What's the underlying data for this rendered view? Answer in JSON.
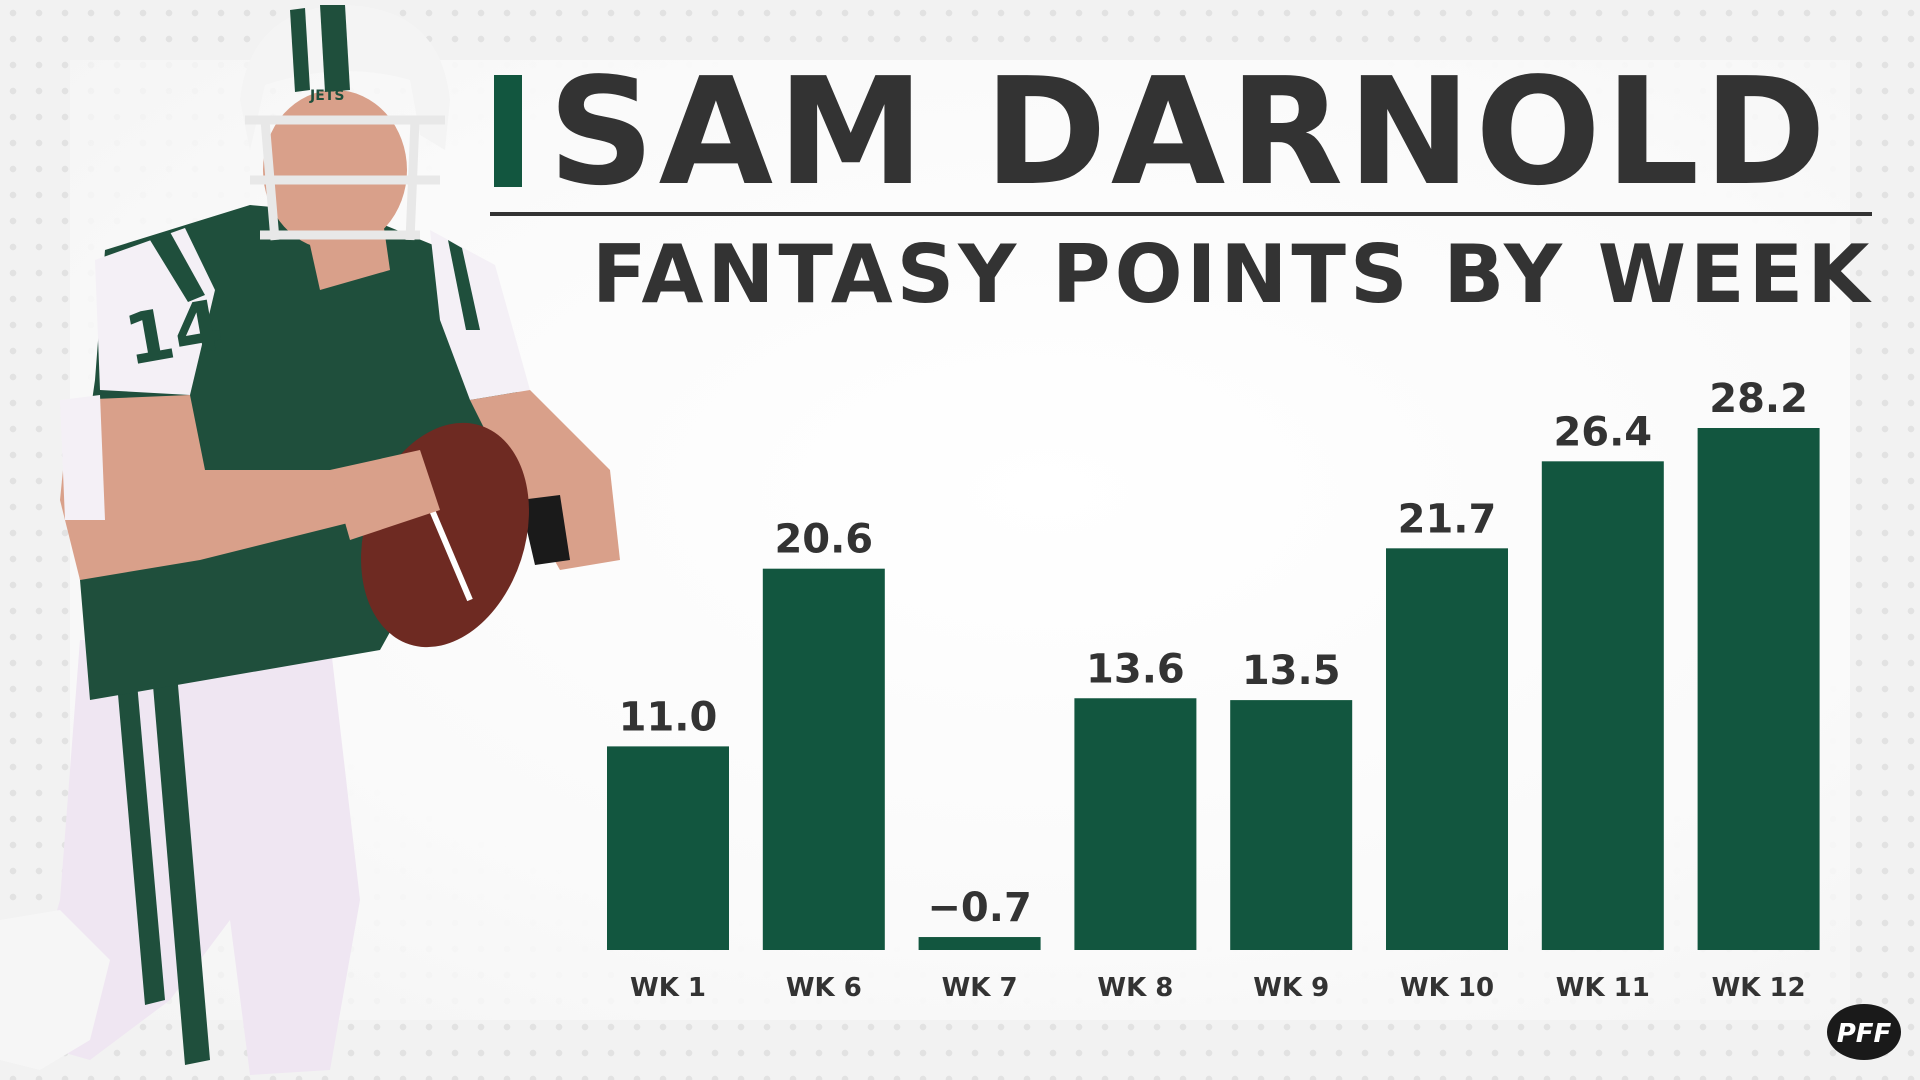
{
  "header": {
    "title": "SAM DARNOLD",
    "subtitle": "FANTASY POINTS BY WEEK"
  },
  "colors": {
    "bar": "#12563f",
    "text": "#333333",
    "jersey_green": "#1f4f3c",
    "jersey_white": "#f4f0f6"
  },
  "player_image": {
    "jersey_number": "14",
    "helmet_text": "JETS"
  },
  "logo": {
    "text": "PFF",
    "icon": "pff-logo-icon"
  },
  "chart_data": {
    "type": "bar",
    "title": "FANTASY POINTS BY WEEK",
    "xlabel": "",
    "ylabel": "",
    "categories": [
      "WK 1",
      "WK 6",
      "WK 7",
      "WK 8",
      "WK 9",
      "WK 10",
      "WK 11",
      "WK 12"
    ],
    "values": [
      11.0,
      20.6,
      -0.7,
      13.6,
      13.5,
      21.7,
      26.4,
      28.2
    ],
    "value_labels": [
      "11.0",
      "20.6",
      "−0.7",
      "13.6",
      "13.5",
      "21.7",
      "26.4",
      "28.2"
    ],
    "ylim": [
      0,
      28.2
    ],
    "grid": false,
    "legend": "none"
  }
}
